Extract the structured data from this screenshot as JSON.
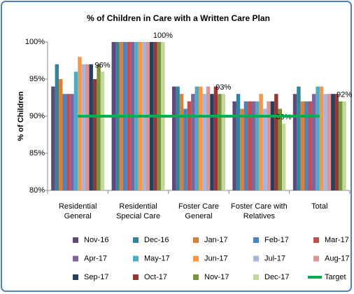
{
  "chart_data": {
    "type": "bar",
    "title": "% of Children in Care with a Written Care Plan",
    "y_label": "% of Children",
    "categories": [
      "Residential General",
      "Residential Special Care",
      "Foster Care General",
      "Foster Care with Relatives",
      "Total"
    ],
    "series": [
      {
        "name": "Nov-16",
        "color": "#5f497a",
        "values": [
          94,
          100,
          94,
          92,
          93
        ]
      },
      {
        "name": "Dec-16",
        "color": "#31849b",
        "values": [
          97,
          100,
          94,
          93,
          94
        ]
      },
      {
        "name": "Jan-17",
        "color": "#d7823a",
        "values": [
          95,
          100,
          93,
          91,
          92
        ]
      },
      {
        "name": "Feb-17",
        "color": "#4f81bd",
        "values": [
          93,
          100,
          91,
          92,
          92
        ]
      },
      {
        "name": "Mar-17",
        "color": "#c0504d",
        "values": [
          93,
          100,
          92,
          92,
          92
        ]
      },
      {
        "name": "Apr-17",
        "color": "#8064a2",
        "values": [
          93,
          100,
          93,
          92,
          93
        ]
      },
      {
        "name": "May-17",
        "color": "#4bacc6",
        "values": [
          96,
          100,
          94,
          92,
          94
        ]
      },
      {
        "name": "Jun-17",
        "color": "#f79646",
        "values": [
          98,
          100,
          94,
          93,
          94
        ]
      },
      {
        "name": "Jul-17",
        "color": "#a6b6e0",
        "values": [
          97,
          100,
          93,
          91,
          93
        ]
      },
      {
        "name": "Aug-17",
        "color": "#d99694",
        "values": [
          97,
          100,
          94,
          92,
          93
        ]
      },
      {
        "name": "Sep-17",
        "color": "#254061",
        "values": [
          97,
          100,
          93,
          92,
          93
        ]
      },
      {
        "name": "Oct-17",
        "color": "#953735",
        "values": [
          95,
          100,
          94,
          93,
          93
        ]
      },
      {
        "name": "Nov-17",
        "color": "#77933c",
        "values": [
          97,
          100,
          93,
          91,
          92
        ]
      },
      {
        "name": "Dec-17",
        "color": "#c3d69b",
        "values": [
          96,
          100,
          93,
          89,
          92
        ],
        "value_labels": [
          "96%",
          "100%",
          "93%",
          "89%",
          "92%"
        ]
      }
    ],
    "target": {
      "name": "Target",
      "color": "#00b050",
      "values": [
        90,
        90,
        90,
        90,
        90
      ]
    },
    "ylim": [
      80,
      100
    ],
    "yticks": [
      {
        "value": 80,
        "label": "80%"
      },
      {
        "value": 85,
        "label": "85%"
      },
      {
        "value": 90,
        "label": "90%"
      },
      {
        "value": 95,
        "label": "95%"
      },
      {
        "value": 100,
        "label": "100%"
      }
    ],
    "grid": false
  }
}
